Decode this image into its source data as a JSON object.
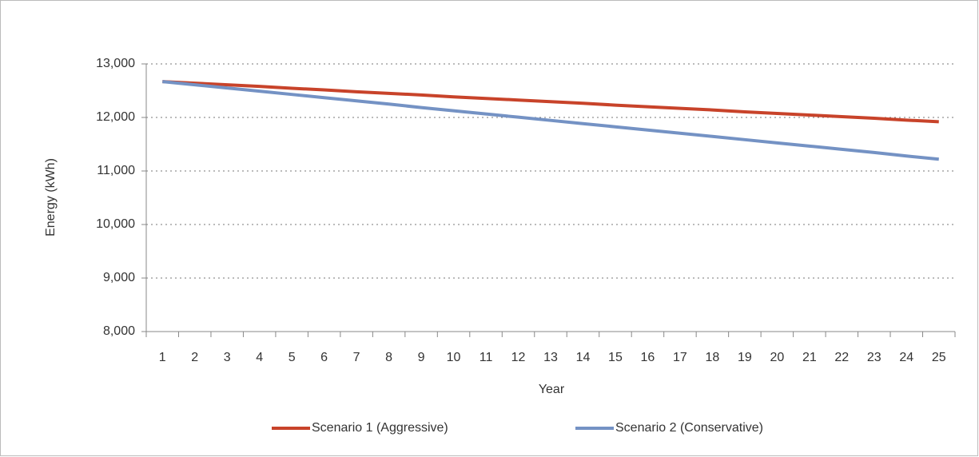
{
  "chart_data": {
    "type": "line",
    "x_label": "Year",
    "y_label": "Energy (kWh)",
    "categories": [
      "1",
      "2",
      "3",
      "4",
      "5",
      "6",
      "7",
      "8",
      "9",
      "10",
      "11",
      "12",
      "13",
      "14",
      "15",
      "16",
      "17",
      "18",
      "19",
      "20",
      "21",
      "22",
      "23",
      "24",
      "25"
    ],
    "series": [
      {
        "name": "Scenario 1 (Aggressive)",
        "color": "#c8432a",
        "values": [
          12670,
          12640,
          12610,
          12580,
          12545,
          12515,
          12480,
          12450,
          12420,
          12385,
          12355,
          12325,
          12295,
          12265,
          12230,
          12200,
          12170,
          12140,
          12105,
          12075,
          12045,
          12015,
          11985,
          11950,
          11920
        ]
      },
      {
        "name": "Scenario 2 (Conservative)",
        "color": "#7492c4",
        "values": [
          12670,
          12610,
          12550,
          12490,
          12430,
          12370,
          12310,
          12250,
          12185,
          12125,
          12065,
          12005,
          11945,
          11885,
          11825,
          11765,
          11705,
          11645,
          11585,
          11525,
          11465,
          11405,
          11345,
          11280,
          11220
        ]
      }
    ],
    "ylim": [
      8000,
      13000
    ],
    "yticks": [
      {
        "value": 8000,
        "label": "8,000"
      },
      {
        "value": 9000,
        "label": "9,000"
      },
      {
        "value": 10000,
        "label": "10,000"
      },
      {
        "value": 11000,
        "label": "11,000"
      },
      {
        "value": 12000,
        "label": "12,000"
      },
      {
        "value": 13000,
        "label": "13,000"
      }
    ],
    "grid": true,
    "legend": "bottom"
  }
}
